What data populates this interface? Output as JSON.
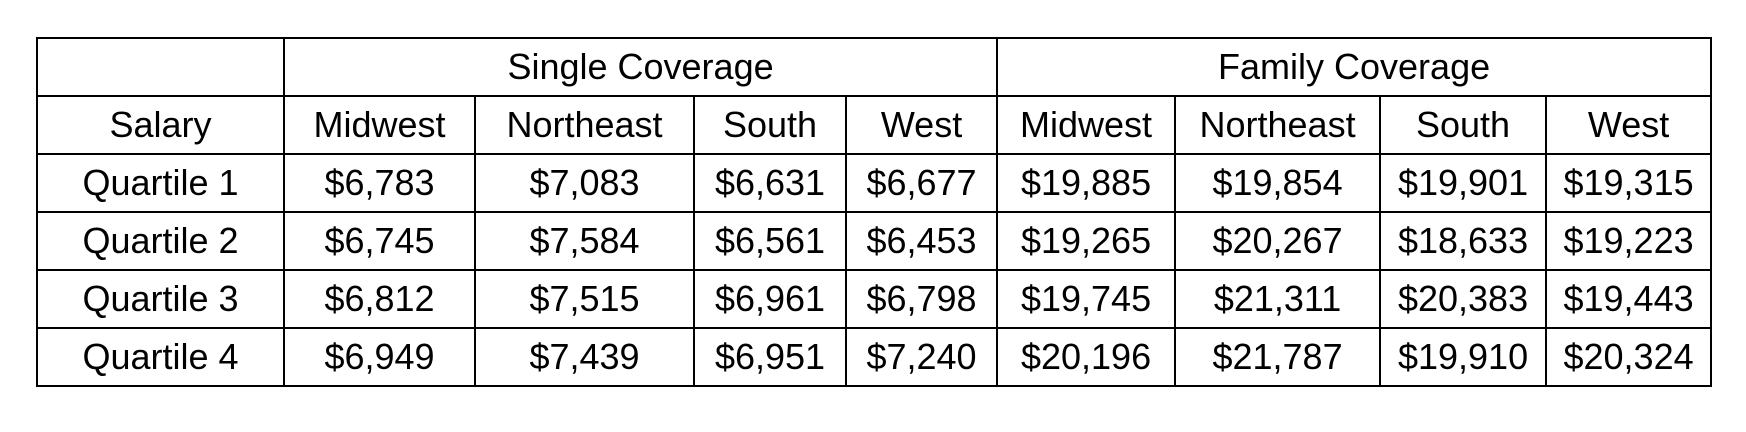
{
  "table": {
    "group_headers": [
      "Single Coverage",
      "Family Coverage"
    ],
    "row_header_label": "Salary",
    "region_headers": [
      "Midwest",
      "Northeast",
      "South",
      "West",
      "Midwest",
      "Northeast",
      "South",
      "West"
    ],
    "rows": [
      {
        "label": "Quartile 1",
        "values": [
          "$6,783",
          "$7,083",
          "$6,631",
          "$6,677",
          "$19,885",
          "$19,854",
          "$19,901",
          "$19,315"
        ]
      },
      {
        "label": "Quartile 2",
        "values": [
          "$6,745",
          "$7,584",
          "$6,561",
          "$6,453",
          "$19,265",
          "$20,267",
          "$18,633",
          "$19,223"
        ]
      },
      {
        "label": "Quartile 3",
        "values": [
          "$6,812",
          "$7,515",
          "$6,961",
          "$6,798",
          "$19,745",
          "$21,311",
          "$20,383",
          "$19,443"
        ]
      },
      {
        "label": "Quartile 4",
        "values": [
          "$6,949",
          "$7,439",
          "$6,951",
          "$7,240",
          "$20,196",
          "$21,787",
          "$19,910",
          "$20,324"
        ]
      }
    ]
  }
}
